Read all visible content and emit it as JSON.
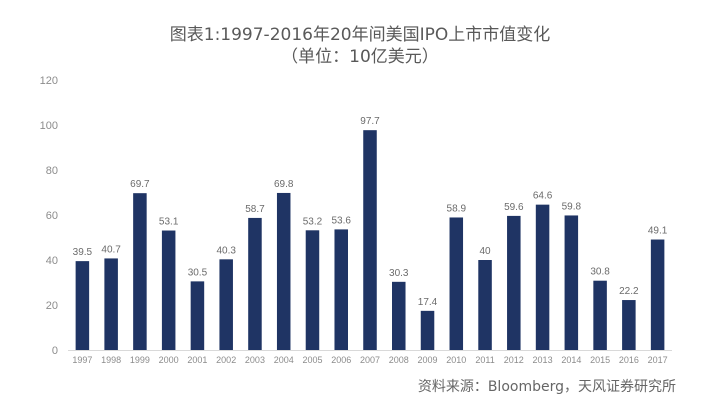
{
  "chart_data": {
    "type": "bar",
    "title": "图表1:1997-2016年20年间美国IPO上市市值变化",
    "subtitle": "（单位：10亿美元）",
    "categories": [
      "1997",
      "1998",
      "1999",
      "2000",
      "2001",
      "2002",
      "2003",
      "2004",
      "2005",
      "2006",
      "2007",
      "2008",
      "2009",
      "2010",
      "2011",
      "2012",
      "2013",
      "2014",
      "2015",
      "2016",
      "2017"
    ],
    "values": [
      39.5,
      40.7,
      69.7,
      53.1,
      30.5,
      40.3,
      58.7,
      69.8,
      53.2,
      53.6,
      97.7,
      30.3,
      17.4,
      58.9,
      40,
      59.6,
      64.6,
      59.8,
      30.8,
      22.2,
      49.1
    ],
    "ylim": [
      0,
      120
    ],
    "yticks": [
      0,
      20,
      40,
      60,
      80,
      100,
      120
    ],
    "grid": false,
    "bar_color": "#1f3464",
    "source": "资料来源：Bloomberg，天风证券研究所"
  }
}
